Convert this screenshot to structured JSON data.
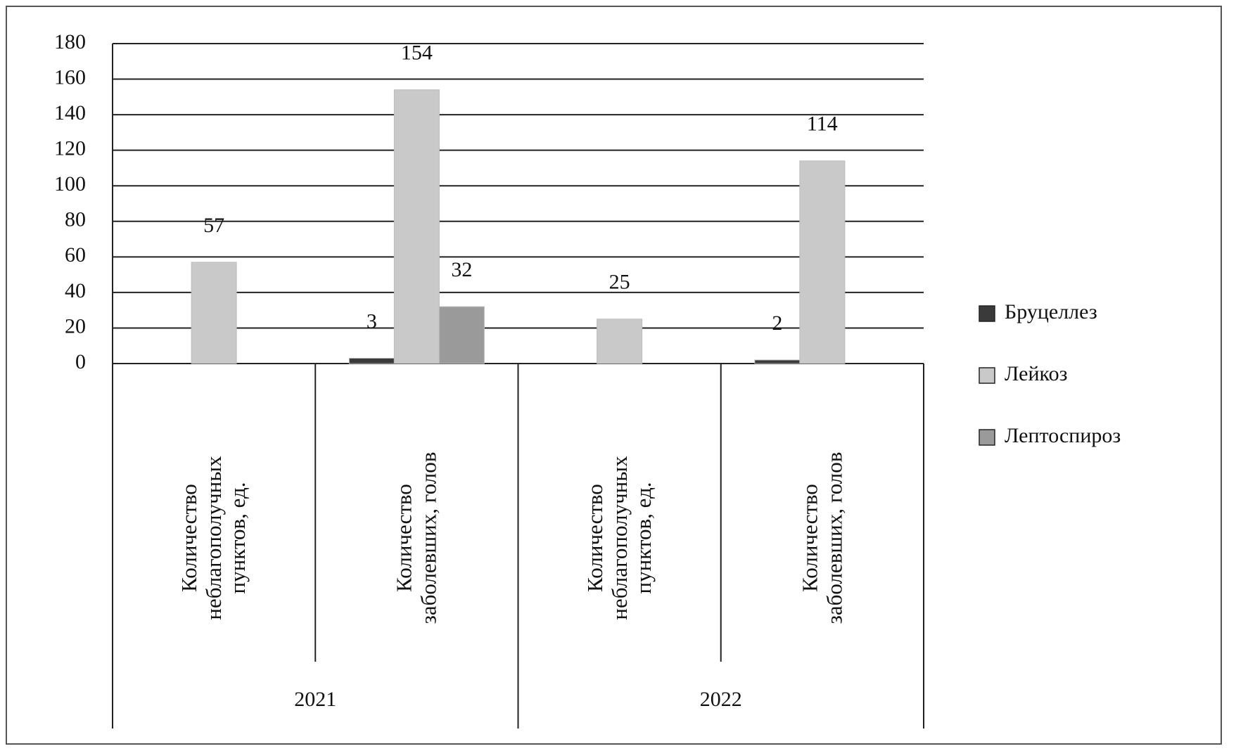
{
  "chart_data": {
    "type": "bar",
    "categories": [
      "Количество неблагополучных пунктов, ед.",
      "Количество заболевших, голов",
      "Количество неблагополучных пунктов, ед.",
      "Количество заболевших, голов"
    ],
    "groups": [
      "2021",
      "2022"
    ],
    "series": [
      {
        "name": "Бруцеллез",
        "color": "#3a3a3a",
        "values": [
          null,
          3,
          null,
          2
        ]
      },
      {
        "name": "Лейкоз",
        "color": "#c9c9c9",
        "values": [
          57,
          154,
          25,
          114
        ]
      },
      {
        "name": "Лептоспироз",
        "color": "#9a9a9a",
        "values": [
          null,
          32,
          null,
          null
        ]
      }
    ],
    "ylim": [
      0,
      180
    ],
    "yticks": [
      0,
      20,
      40,
      60,
      80,
      100,
      120,
      140,
      160,
      180
    ],
    "grid": true,
    "legend": "right"
  }
}
